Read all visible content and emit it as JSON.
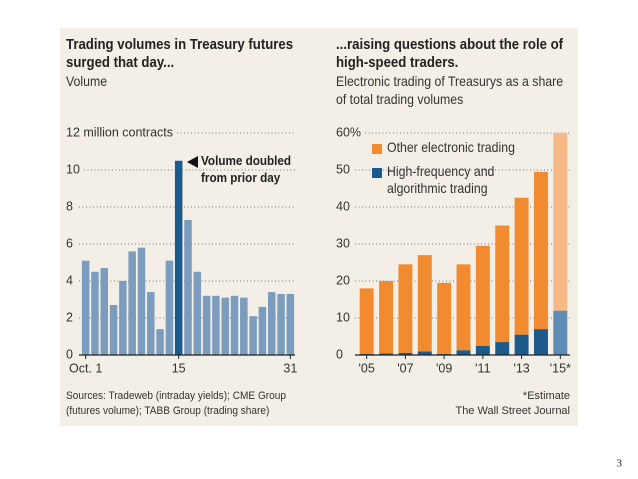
{
  "chart_data": [
    {
      "type": "bar",
      "title": "Trading volumes in Treasury futures surged that day...",
      "subtitle": "Volume",
      "categories": [
        "Oct. 1",
        null,
        null,
        null,
        null,
        null,
        null,
        null,
        null,
        null,
        "15",
        null,
        null,
        null,
        null,
        null,
        null,
        null,
        null,
        null,
        null,
        null,
        "31"
      ],
      "values": [
        5.1,
        4.5,
        4.7,
        2.7,
        4.0,
        5.6,
        5.8,
        3.4,
        1.4,
        5.1,
        10.5,
        7.3,
        4.5,
        3.2,
        3.2,
        3.1,
        3.2,
        3.1,
        2.1,
        2.6,
        3.4,
        3.3,
        3.3
      ],
      "colors": [
        "#7b9cbd",
        "#7b9cbd",
        "#7b9cbd",
        "#7b9cbd",
        "#7b9cbd",
        "#7b9cbd",
        "#7b9cbd",
        "#7b9cbd",
        "#7b9cbd",
        "#7b9cbd",
        "#1d5a8c",
        "#7b9cbd",
        "#7b9cbd",
        "#7b9cbd",
        "#7b9cbd",
        "#7b9cbd",
        "#7b9cbd",
        "#7b9cbd",
        "#7b9cbd",
        "#7b9cbd",
        "#7b9cbd",
        "#7b9cbd",
        "#7b9cbd"
      ],
      "annotation": "Volume doubled from prior day",
      "ylim": [
        0,
        12
      ],
      "yticks": [
        0,
        2,
        4,
        6,
        8,
        10,
        {
          "value": 12,
          "label": "12 million contracts"
        }
      ],
      "grid": true
    },
    {
      "type": "stacked_bar",
      "title": "...raising questions about the role of high-speed traders.",
      "subtitle": "Electronic trading of Treasurys as a share of total trading volumes",
      "categories": [
        "'05",
        null,
        "'07",
        null,
        "'09",
        null,
        "'11",
        null,
        "'13",
        null,
        "'15*"
      ],
      "series": [
        {
          "name": "High-frequency and algorithmic trading",
          "color": "#1d5a8c",
          "colors": [
            "#1d5a8c",
            "#1d5a8c",
            "#1d5a8c",
            "#1d5a8c",
            "#1d5a8c",
            "#1d5a8c",
            "#1d5a8c",
            "#1d5a8c",
            "#1d5a8c",
            "#1d5a8c",
            "#5f8bb3"
          ],
          "values": [
            0.3,
            0.4,
            0.6,
            1.0,
            0.3,
            1.3,
            2.5,
            3.5,
            5.5,
            7.0,
            12.0
          ]
        },
        {
          "name": "Other electronic trading",
          "color": "#f28a30",
          "colors": [
            "#f28a30",
            "#f28a30",
            "#f28a30",
            "#f28a30",
            "#f28a30",
            "#f28a30",
            "#f28a30",
            "#f28a30",
            "#f28a30",
            "#f28a30",
            "#f7b985"
          ],
          "values": [
            17.7,
            19.6,
            23.9,
            26.0,
            19.2,
            23.2,
            27.0,
            31.5,
            37.0,
            42.5,
            48.0
          ]
        }
      ],
      "ylim": [
        0,
        60
      ],
      "yticks": [
        0,
        10,
        20,
        30,
        40,
        50,
        {
          "value": 60,
          "label": "60%"
        }
      ],
      "grid": true
    }
  ],
  "sources": "Sources: Tradeweb (intraday yields); CME Group (futures volume); TABB Group (trading share)",
  "note": "*Estimate",
  "credit": "The Wall Street Journal",
  "page_number": "3"
}
